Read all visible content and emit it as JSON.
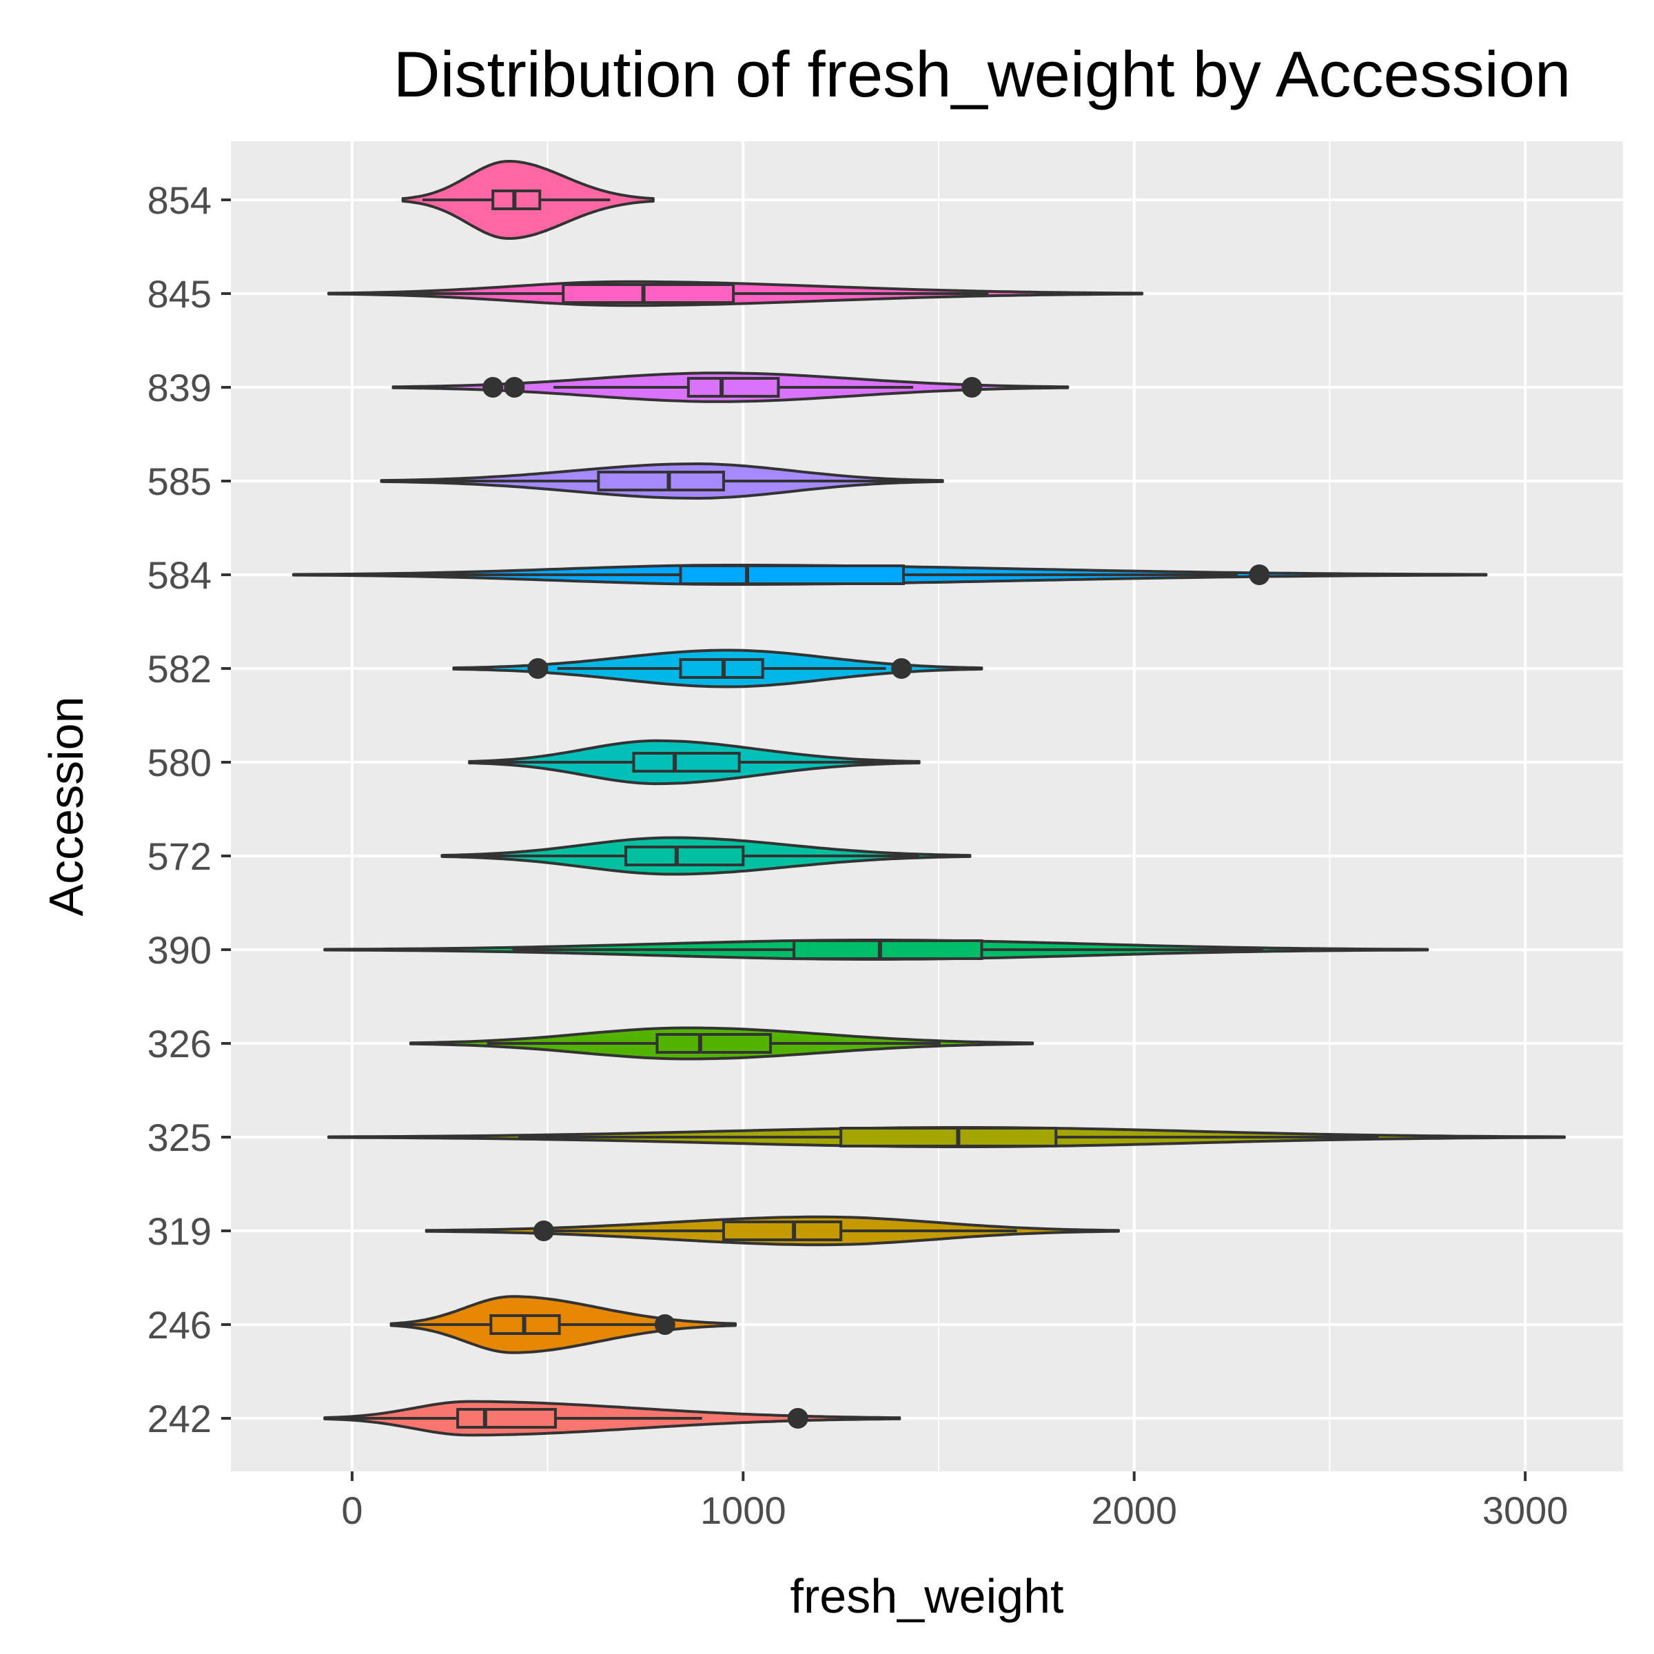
{
  "chart_data": {
    "type": "violin",
    "title": "Distribution of fresh_weight by Accession",
    "xlabel": "fresh_weight",
    "ylabel": "Accession",
    "xlim": [
      -310,
      3250
    ],
    "x_ticks": [
      0,
      1000,
      2000,
      3000
    ],
    "x_tick_labels": [
      "0",
      "1000",
      "2000",
      "3000"
    ],
    "grid": true,
    "legend": "none",
    "categories": [
      "854",
      "845",
      "839",
      "585",
      "584",
      "582",
      "580",
      "572",
      "390",
      "326",
      "325",
      "319",
      "246",
      "242"
    ],
    "series": [
      {
        "category": "854",
        "color": "#FF67A4",
        "min": 130,
        "q1": 360,
        "median": 415,
        "q3": 480,
        "max": 770,
        "peak": 400,
        "outliers": []
      },
      {
        "category": "845",
        "color": "#FF61C3",
        "min": -60,
        "q1": 540,
        "median": 745,
        "q3": 975,
        "max": 2020,
        "peak": 700,
        "outliers": []
      },
      {
        "category": "839",
        "color": "#DB72FB",
        "min": 105,
        "q1": 860,
        "median": 945,
        "q3": 1090,
        "max": 1830,
        "peak": 935,
        "outliers": [
          360,
          415,
          1585
        ]
      },
      {
        "category": "585",
        "color": "#A58AFF",
        "min": 75,
        "q1": 630,
        "median": 810,
        "q3": 950,
        "max": 1510,
        "peak": 880,
        "outliers": []
      },
      {
        "category": "584",
        "color": "#00A9FF",
        "min": -150,
        "q1": 840,
        "median": 1010,
        "q3": 1410,
        "max": 2900,
        "peak": 970,
        "outliers": [
          2320
        ]
      },
      {
        "category": "582",
        "color": "#00B8E7",
        "min": 260,
        "q1": 840,
        "median": 950,
        "q3": 1050,
        "max": 1610,
        "peak": 960,
        "outliers": [
          475,
          1405
        ]
      },
      {
        "category": "580",
        "color": "#00C0B8",
        "min": 300,
        "q1": 720,
        "median": 825,
        "q3": 990,
        "max": 1450,
        "peak": 780,
        "outliers": []
      },
      {
        "category": "572",
        "color": "#00C19F",
        "min": 230,
        "q1": 700,
        "median": 830,
        "q3": 1000,
        "max": 1580,
        "peak": 820,
        "outliers": []
      },
      {
        "category": "390",
        "color": "#00BE67",
        "min": -70,
        "q1": 1130,
        "median": 1350,
        "q3": 1610,
        "max": 2750,
        "peak": 1330,
        "outliers": []
      },
      {
        "category": "326",
        "color": "#53B400",
        "min": 150,
        "q1": 780,
        "median": 890,
        "q3": 1070,
        "max": 1740,
        "peak": 860,
        "outliers": []
      },
      {
        "category": "325",
        "color": "#A3A500",
        "min": -60,
        "q1": 1250,
        "median": 1550,
        "q3": 1800,
        "max": 3100,
        "peak": 1560,
        "outliers": []
      },
      {
        "category": "319",
        "color": "#C49A00",
        "min": 190,
        "q1": 950,
        "median": 1130,
        "q3": 1250,
        "max": 1960,
        "peak": 1200,
        "outliers": [
          490
        ]
      },
      {
        "category": "246",
        "color": "#E58700",
        "min": 100,
        "q1": 355,
        "median": 440,
        "q3": 530,
        "max": 980,
        "peak": 410,
        "outliers": [
          800
        ]
      },
      {
        "category": "242",
        "color": "#F8766D",
        "min": -70,
        "q1": 270,
        "median": 340,
        "q3": 520,
        "max": 1400,
        "peak": 300,
        "outliers": [
          1140
        ]
      }
    ]
  }
}
